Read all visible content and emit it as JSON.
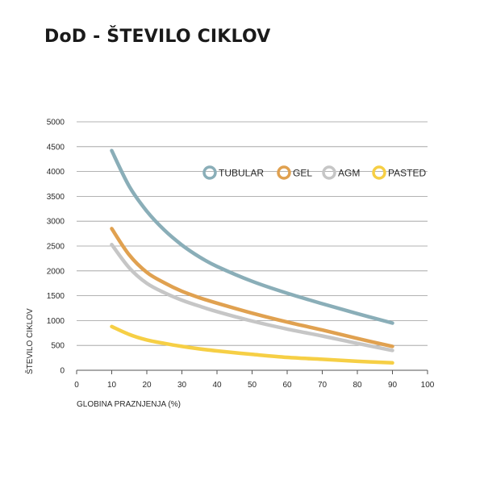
{
  "chart_data": {
    "type": "line",
    "title": "DoD - ŠTEVILO CIKLOV",
    "xlabel": "GLOBINA PRAZNJENJA (%)",
    "ylabel": "ŠTEVILO CIKLOV",
    "xlim": [
      0,
      100
    ],
    "ylim": [
      0,
      5000
    ],
    "xticks": [
      "0",
      "10",
      "20",
      "30",
      "40",
      "50",
      "60",
      "70",
      "80",
      "90",
      "100"
    ],
    "yticks": [
      "0",
      "500",
      "1000",
      "1500",
      "2000",
      "2500",
      "3000",
      "3500",
      "4000",
      "4500",
      "5000"
    ],
    "grid": "horizontal",
    "legend_position": "top-right",
    "series": [
      {
        "name": "TUBULAR",
        "color": "#8aaeb8",
        "x": [
          10,
          15,
          20,
          25,
          30,
          35,
          40,
          50,
          60,
          70,
          80,
          90
        ],
        "y": [
          4420,
          3700,
          3200,
          2820,
          2520,
          2280,
          2090,
          1790,
          1550,
          1340,
          1140,
          950
        ]
      },
      {
        "name": "GEL",
        "color": "#e0a150",
        "x": [
          10,
          15,
          20,
          25,
          30,
          35,
          40,
          50,
          60,
          70,
          80,
          90
        ],
        "y": [
          2850,
          2320,
          1970,
          1760,
          1590,
          1460,
          1350,
          1150,
          970,
          810,
          640,
          480
        ]
      },
      {
        "name": "AGM",
        "color": "#c6c6c6",
        "x": [
          10,
          15,
          20,
          25,
          30,
          35,
          40,
          50,
          60,
          70,
          80,
          90
        ],
        "y": [
          2530,
          2060,
          1750,
          1560,
          1410,
          1290,
          1180,
          990,
          830,
          690,
          540,
          400
        ]
      },
      {
        "name": "PASTED",
        "color": "#f6cf45",
        "x": [
          10,
          15,
          20,
          25,
          30,
          35,
          40,
          50,
          60,
          70,
          80,
          90
        ],
        "y": [
          880,
          720,
          610,
          540,
          480,
          430,
          390,
          320,
          260,
          220,
          180,
          150
        ]
      }
    ]
  }
}
